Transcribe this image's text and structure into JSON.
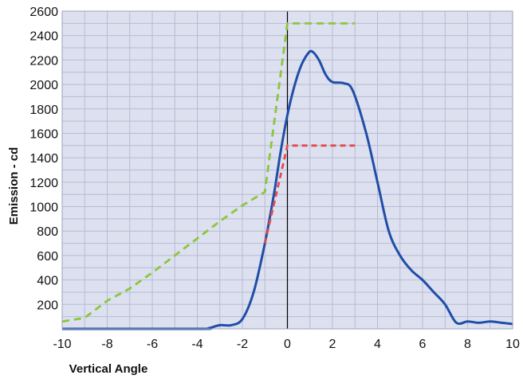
{
  "chart_data": {
    "type": "line",
    "title": "",
    "xlabel": "Vertical Angle",
    "ylabel": "Emission - cd",
    "xlim": [
      -10,
      10
    ],
    "ylim": [
      0,
      2600
    ],
    "x_ticks": [
      -10,
      -8,
      -6,
      -4,
      -2,
      0,
      2,
      4,
      6,
      8,
      10
    ],
    "y_ticks": [
      200,
      400,
      600,
      800,
      1000,
      1200,
      1400,
      1600,
      1800,
      2000,
      2200,
      2400,
      2600
    ],
    "x_tick_labels": [
      "-10",
      "-8",
      "-6",
      "-4",
      "-2",
      "0",
      "2",
      "4",
      "6",
      "8",
      "10"
    ],
    "y_tick_labels": [
      "200",
      "400",
      "600",
      "800",
      "1000",
      "1200",
      "1400",
      "1600",
      "1800",
      "2000",
      "2200",
      "2400",
      "2600"
    ],
    "grid": true,
    "background": "#dde0ef",
    "grid_color": "#b7bbd4",
    "zero_line": {
      "x": 0,
      "color": "#000000"
    },
    "legend": "none",
    "series": [
      {
        "style": "solid",
        "color": "#1f4ea8",
        "points": [
          [
            -10,
            0
          ],
          [
            -4,
            0
          ],
          [
            -3.5,
            5
          ],
          [
            -3,
            30
          ],
          [
            -2.5,
            30
          ],
          [
            -2,
            80
          ],
          [
            -1.5,
            300
          ],
          [
            -1,
            700
          ],
          [
            -0.6,
            1100
          ],
          [
            -0.3,
            1450
          ],
          [
            0,
            1750
          ],
          [
            0.3,
            1980
          ],
          [
            0.6,
            2150
          ],
          [
            0.9,
            2250
          ],
          [
            1.1,
            2270
          ],
          [
            1.4,
            2200
          ],
          [
            1.7,
            2080
          ],
          [
            2,
            2020
          ],
          [
            2.5,
            2010
          ],
          [
            2.9,
            1950
          ],
          [
            3.5,
            1600
          ],
          [
            4,
            1200
          ],
          [
            4.5,
            800
          ],
          [
            5,
            600
          ],
          [
            5.5,
            480
          ],
          [
            6,
            400
          ],
          [
            6.5,
            300
          ],
          [
            7,
            200
          ],
          [
            7.5,
            50
          ],
          [
            8,
            60
          ],
          [
            8.5,
            50
          ],
          [
            9,
            60
          ],
          [
            9.5,
            50
          ],
          [
            10,
            40
          ]
        ]
      },
      {
        "style": "dashed",
        "color": "#8cc63f",
        "points": [
          [
            -10,
            60
          ],
          [
            -9,
            90
          ],
          [
            -8,
            230
          ],
          [
            -7,
            330
          ],
          [
            -6,
            460
          ],
          [
            -5,
            600
          ],
          [
            -4,
            740
          ],
          [
            -3,
            880
          ],
          [
            -2,
            1010
          ],
          [
            -1,
            1120
          ],
          [
            0,
            2500
          ],
          [
            3,
            2500
          ]
        ]
      },
      {
        "style": "dashed",
        "color": "#e24b4b",
        "points": [
          [
            -1,
            700
          ],
          [
            -0.5,
            1100
          ],
          [
            0,
            1500
          ],
          [
            3,
            1500
          ]
        ]
      }
    ]
  }
}
